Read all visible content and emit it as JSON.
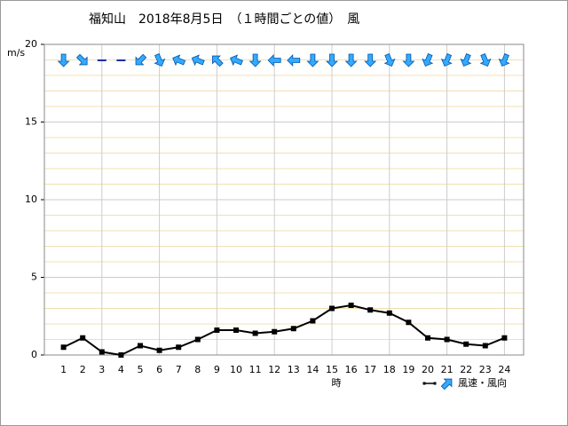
{
  "chart_data": {
    "type": "line",
    "title": "福知山　2018年8月5日　（１時間ごとの値）　風",
    "y_label": "m/s",
    "x_label": "時",
    "x": [
      1,
      2,
      3,
      4,
      5,
      6,
      7,
      8,
      9,
      10,
      11,
      12,
      13,
      14,
      15,
      16,
      17,
      18,
      19,
      20,
      21,
      22,
      23,
      24
    ],
    "xlim": [
      0,
      25
    ],
    "xticks": [
      1,
      2,
      3,
      4,
      5,
      6,
      7,
      8,
      9,
      10,
      11,
      12,
      13,
      14,
      15,
      16,
      17,
      18,
      19,
      20,
      21,
      22,
      23,
      24
    ],
    "x_grid_every": 3,
    "ylim": [
      0,
      20
    ],
    "yticks": [
      0,
      5,
      10,
      15,
      20
    ],
    "y_minor_step": 1,
    "grid": true,
    "series": [
      {
        "name": "風速・風向",
        "color": "#000000",
        "values": [
          0.5,
          1.1,
          0.2,
          0.0,
          0.6,
          0.3,
          0.5,
          1.0,
          1.6,
          1.6,
          1.4,
          1.5,
          1.7,
          2.2,
          3.0,
          3.2,
          2.9,
          2.7,
          2.1,
          1.1,
          1.0,
          0.7,
          0.6,
          1.1
        ]
      }
    ],
    "directions": [
      180,
      135,
      null,
      null,
      225,
      157.5,
      292.5,
      292.5,
      315,
      292.5,
      180,
      270,
      270,
      180,
      180,
      180,
      180,
      157.5,
      180,
      202.5,
      202.5,
      202.5,
      157.5,
      202.5
    ],
    "direction_color": "#33aaff",
    "legend": "bottom-right"
  }
}
